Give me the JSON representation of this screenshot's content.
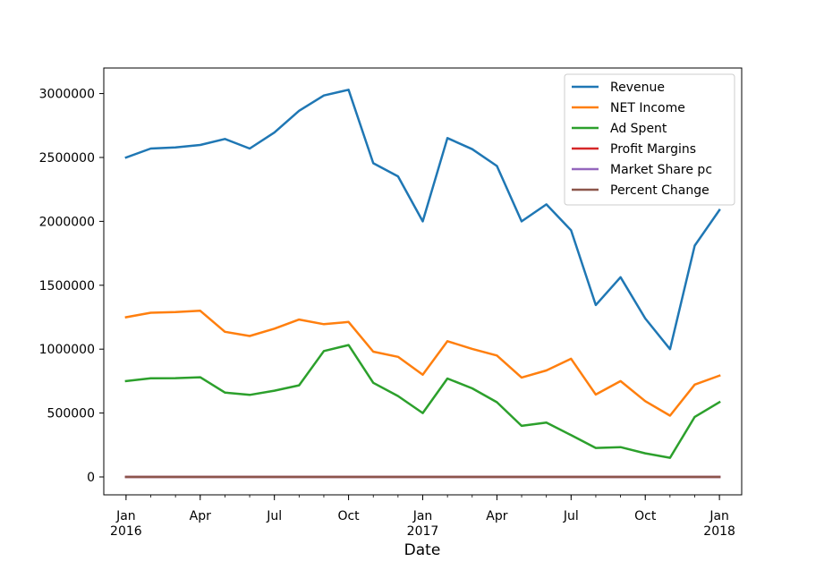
{
  "chart_data": {
    "type": "line",
    "title": "",
    "xlabel": "Date",
    "ylabel": "",
    "x": [
      "2016-01",
      "2016-02",
      "2016-03",
      "2016-04",
      "2016-05",
      "2016-06",
      "2016-07",
      "2016-08",
      "2016-09",
      "2016-10",
      "2016-11",
      "2016-12",
      "2017-01",
      "2017-02",
      "2017-03",
      "2017-04",
      "2017-05",
      "2017-06",
      "2017-07",
      "2017-08",
      "2017-09",
      "2017-10",
      "2017-11",
      "2017-12",
      "2018-01"
    ],
    "xlim": [
      "2015-12",
      "2018-02"
    ],
    "ylim": [
      -140000,
      3200000
    ],
    "yticks": [
      0,
      500000,
      1000000,
      1500000,
      2000000,
      2500000,
      3000000
    ],
    "ytick_labels": [
      "0",
      "500000",
      "1000000",
      "1500000",
      "2000000",
      "2500000",
      "3000000"
    ],
    "xticks": [
      {
        "date": "2016-01",
        "label": "Jan",
        "year": "2016"
      },
      {
        "date": "2016-04",
        "label": "Apr",
        "year": ""
      },
      {
        "date": "2016-07",
        "label": "Jul",
        "year": ""
      },
      {
        "date": "2016-10",
        "label": "Oct",
        "year": ""
      },
      {
        "date": "2017-01",
        "label": "Jan",
        "year": "2017"
      },
      {
        "date": "2017-04",
        "label": "Apr",
        "year": ""
      },
      {
        "date": "2017-07",
        "label": "Jul",
        "year": ""
      },
      {
        "date": "2017-10",
        "label": "Oct",
        "year": ""
      },
      {
        "date": "2018-01",
        "label": "Jan",
        "year": "2018"
      }
    ],
    "grid": false,
    "legend_position": "top-right",
    "series": [
      {
        "name": "Revenue",
        "color": "#1f77b4",
        "values": [
          2500000,
          2570000,
          2578000,
          2598000,
          2645000,
          2570000,
          2695000,
          2865000,
          2985000,
          3030000,
          2455000,
          2352000,
          2000000,
          2652000,
          2565000,
          2433000,
          2000000,
          2133000,
          1930000,
          1345000,
          1563000,
          1240000,
          1000000,
          1810000,
          2088000
        ]
      },
      {
        "name": "NET Income",
        "color": "#ff7f0e",
        "values": [
          1250000,
          1285000,
          1290000,
          1300000,
          1136000,
          1103000,
          1160000,
          1232000,
          1195000,
          1213000,
          980000,
          940000,
          800000,
          1062000,
          1002000,
          950000,
          778000,
          833000,
          925000,
          645000,
          750000,
          593000,
          480000,
          723000,
          793000
        ]
      },
      {
        "name": "Ad Spent",
        "color": "#2ca02c",
        "values": [
          750000,
          772000,
          773000,
          780000,
          660000,
          642000,
          675000,
          717000,
          985000,
          1032000,
          737000,
          633000,
          500000,
          770000,
          693000,
          585000,
          400000,
          425000,
          327000,
          227000,
          233000,
          185000,
          150000,
          470000,
          585000
        ]
      },
      {
        "name": "Profit Margins",
        "color": "#d62728",
        "values": [
          0.5,
          0.5,
          0.5,
          0.5,
          0.43,
          0.43,
          0.43,
          0.43,
          0.4,
          0.4,
          0.4,
          0.4,
          0.4,
          0.4,
          0.39,
          0.39,
          0.39,
          0.39,
          0.48,
          0.48,
          0.48,
          0.48,
          0.48,
          0.4,
          0.38
        ]
      },
      {
        "name": "Market Share pc",
        "color": "#9467bd",
        "values": [
          10,
          10,
          10,
          10,
          10,
          10,
          10,
          10,
          10,
          10,
          10,
          10,
          10,
          10,
          10,
          10,
          10,
          10,
          10,
          10,
          10,
          10,
          10,
          10,
          10
        ]
      },
      {
        "name": "Percent Change",
        "color": "#8c564b",
        "values": [
          0,
          2.8,
          0.3,
          0.8,
          1.8,
          -2.8,
          4.9,
          6.3,
          4.2,
          1.5,
          -19,
          -4.2,
          -15,
          32.6,
          -3.3,
          -5.1,
          -17.8,
          6.7,
          -9.5,
          -30.3,
          16.2,
          -20.7,
          -19.4,
          81,
          15.4
        ]
      }
    ]
  }
}
